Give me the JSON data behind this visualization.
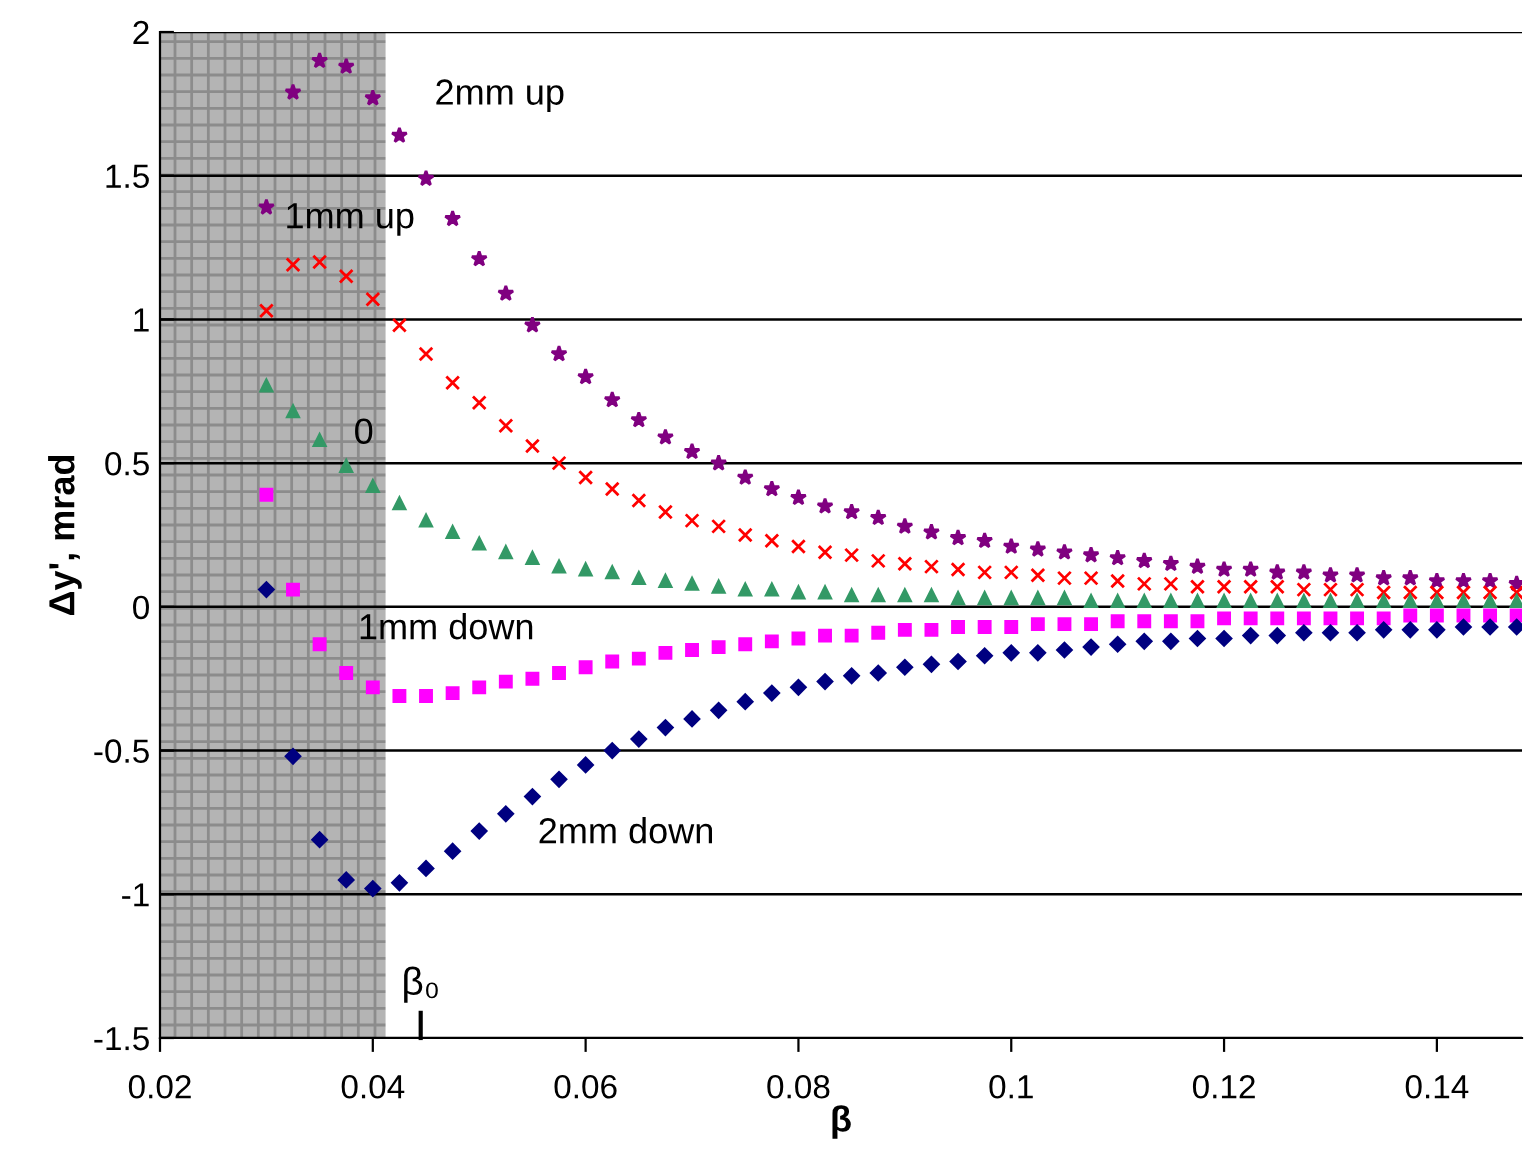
{
  "chart_data": {
    "type": "scatter",
    "xlabel": "β",
    "ylabel": "Δy', mrad",
    "x": [
      0.03,
      0.0325,
      0.035,
      0.0375,
      0.04,
      0.0425,
      0.045,
      0.0475,
      0.05,
      0.0525,
      0.055,
      0.0575,
      0.06,
      0.0625,
      0.065,
      0.0675,
      0.07,
      0.0725,
      0.075,
      0.0775,
      0.08,
      0.0825,
      0.085,
      0.0875,
      0.09,
      0.0925,
      0.095,
      0.0975,
      0.1,
      0.1025,
      0.105,
      0.1075,
      0.11,
      0.1125,
      0.115,
      0.1175,
      0.12,
      0.1225,
      0.125,
      0.1275,
      0.13,
      0.1325,
      0.135,
      0.1375,
      0.14,
      0.1425,
      0.145,
      0.1475
    ],
    "series": [
      {
        "name": "2mm up",
        "color": "#800080",
        "marker": "star",
        "values": [
          1.39,
          1.79,
          1.9,
          1.88,
          1.77,
          1.64,
          1.49,
          1.35,
          1.21,
          1.09,
          0.98,
          0.88,
          0.8,
          0.72,
          0.65,
          0.59,
          0.54,
          0.5,
          0.45,
          0.41,
          0.38,
          0.35,
          0.33,
          0.31,
          0.28,
          0.26,
          0.24,
          0.23,
          0.21,
          0.2,
          0.19,
          0.18,
          0.17,
          0.16,
          0.15,
          0.14,
          0.13,
          0.13,
          0.12,
          0.12,
          0.11,
          0.11,
          0.1,
          0.1,
          0.09,
          0.09,
          0.09,
          0.08
        ]
      },
      {
        "name": "1mm up",
        "color": "#ff0000",
        "marker": "cross",
        "values": [
          1.03,
          1.19,
          1.2,
          1.15,
          1.07,
          0.98,
          0.88,
          0.78,
          0.71,
          0.63,
          0.56,
          0.5,
          0.45,
          0.41,
          0.37,
          0.33,
          0.3,
          0.28,
          0.25,
          0.23,
          0.21,
          0.19,
          0.18,
          0.16,
          0.15,
          0.14,
          0.13,
          0.12,
          0.12,
          0.11,
          0.1,
          0.1,
          0.09,
          0.08,
          0.08,
          0.07,
          0.07,
          0.07,
          0.07,
          0.06,
          0.06,
          0.06,
          0.05,
          0.05,
          0.05,
          0.05,
          0.05,
          0.05
        ]
      },
      {
        "name": "0",
        "color": "#339966",
        "marker": "triangle",
        "values": [
          0.77,
          0.68,
          0.58,
          0.49,
          0.42,
          0.36,
          0.3,
          0.26,
          0.22,
          0.19,
          0.17,
          0.14,
          0.13,
          0.12,
          0.1,
          0.09,
          0.08,
          0.07,
          0.06,
          0.06,
          0.05,
          0.05,
          0.04,
          0.04,
          0.04,
          0.04,
          0.03,
          0.03,
          0.03,
          0.03,
          0.03,
          0.02,
          0.02,
          0.02,
          0.02,
          0.02,
          0.02,
          0.02,
          0.02,
          0.02,
          0.02,
          0.02,
          0.02,
          0.02,
          0.02,
          0.02,
          0.02,
          0.02
        ]
      },
      {
        "name": "1mm down",
        "color": "#ff00ff",
        "marker": "square",
        "values": [
          0.39,
          0.06,
          -0.13,
          -0.23,
          -0.28,
          -0.31,
          -0.31,
          -0.3,
          -0.28,
          -0.26,
          -0.25,
          -0.23,
          -0.21,
          -0.19,
          -0.18,
          -0.16,
          -0.15,
          -0.14,
          -0.13,
          -0.12,
          -0.11,
          -0.1,
          -0.1,
          -0.09,
          -0.08,
          -0.08,
          -0.07,
          -0.07,
          -0.07,
          -0.06,
          -0.06,
          -0.06,
          -0.05,
          -0.05,
          -0.05,
          -0.05,
          -0.04,
          -0.04,
          -0.04,
          -0.04,
          -0.04,
          -0.04,
          -0.04,
          -0.03,
          -0.03,
          -0.03,
          -0.03,
          -0.03
        ]
      },
      {
        "name": "2mm down",
        "color": "#000080",
        "marker": "diamond",
        "values": [
          0.06,
          -0.52,
          -0.81,
          -0.95,
          -0.98,
          -0.96,
          -0.91,
          -0.85,
          -0.78,
          -0.72,
          -0.66,
          -0.6,
          -0.55,
          -0.5,
          -0.46,
          -0.42,
          -0.39,
          -0.36,
          -0.33,
          -0.3,
          -0.28,
          -0.26,
          -0.24,
          -0.23,
          -0.21,
          -0.2,
          -0.19,
          -0.17,
          -0.16,
          -0.16,
          -0.15,
          -0.14,
          -0.13,
          -0.12,
          -0.12,
          -0.11,
          -0.11,
          -0.1,
          -0.1,
          -0.09,
          -0.09,
          -0.09,
          -0.08,
          -0.08,
          -0.08,
          -0.07,
          -0.07,
          -0.07
        ]
      }
    ],
    "xlim": [
      0.02,
      0.148
    ],
    "xticks": [
      0.02,
      0.04,
      0.06,
      0.08,
      0.1,
      0.12,
      0.14
    ],
    "ylim": [
      -1.5,
      2
    ],
    "yticks": [
      -1.5,
      -1,
      -0.5,
      0,
      0.5,
      1,
      1.5,
      2
    ],
    "grid": "y",
    "bands": [
      {
        "axis": "x",
        "from": 0.02,
        "to": 0.0412,
        "color": "#b4b4b4"
      }
    ],
    "annotations": [
      "β₀"
    ]
  }
}
